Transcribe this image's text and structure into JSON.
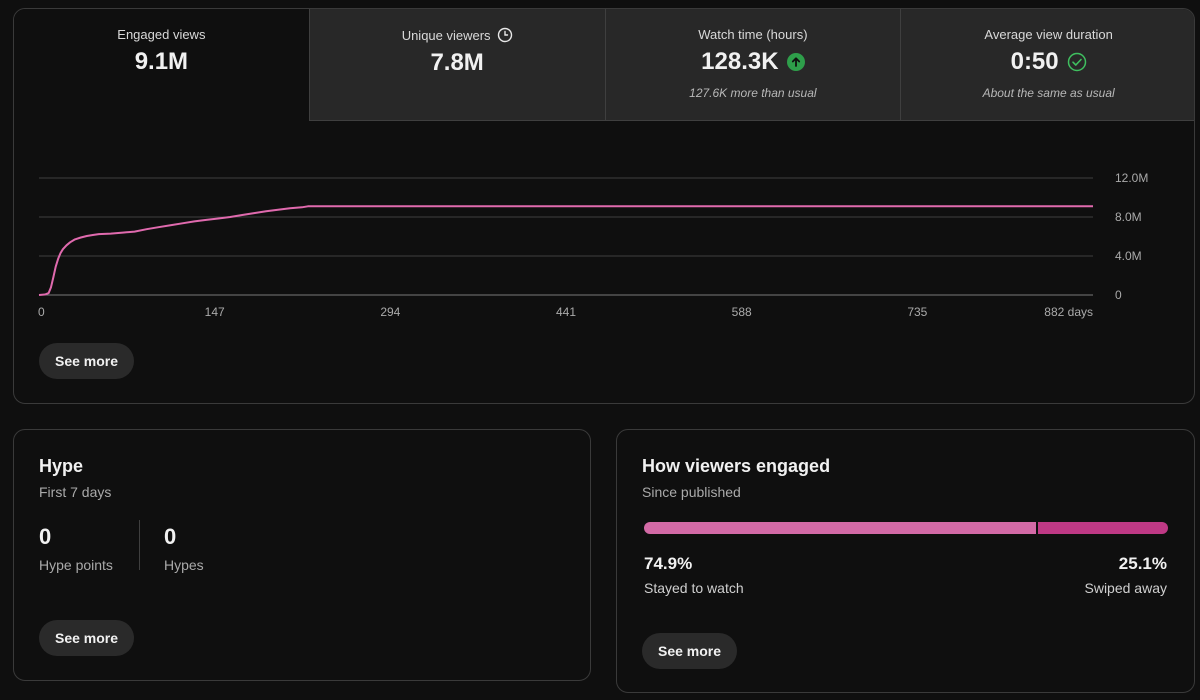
{
  "metrics": [
    {
      "label": "Engaged views",
      "value": "9.1M",
      "note": "",
      "icon": "",
      "selected": true
    },
    {
      "label": "Unique viewers",
      "value": "7.8M",
      "note": "",
      "icon": "clock-icon",
      "selected": false
    },
    {
      "label": "Watch time (hours)",
      "value": "128.3K",
      "note": "127.6K more than usual",
      "icon": "arrow-up-icon",
      "selected": false
    },
    {
      "label": "Average view duration",
      "value": "0:50",
      "note": "About the same as usual",
      "icon": "check-circle-icon",
      "selected": false
    }
  ],
  "colors": {
    "line": "#e06aae",
    "stayed": "#d36aa6",
    "swiped": "#bf3985",
    "up": "#2e9e4a",
    "check": "#3fbf5f"
  },
  "chart_data": {
    "type": "line",
    "xlabel": "",
    "ylabel": "",
    "xlim": [
      0,
      882
    ],
    "ylim": [
      0,
      12000000
    ],
    "x_ticks": [
      "0",
      "147",
      "294",
      "441",
      "588",
      "735",
      "882 days"
    ],
    "y_ticks": [
      "12.0M",
      "8.0M",
      "4.0M",
      "0"
    ],
    "grid": true,
    "series": [
      {
        "name": "",
        "x": [
          0,
          5,
          8,
          10,
          12,
          14,
          16,
          18,
          20,
          23,
          26,
          30,
          35,
          40,
          45,
          50,
          60,
          70,
          80,
          90,
          100,
          110,
          120,
          130,
          140,
          150,
          160,
          170,
          180,
          190,
          200,
          210,
          220,
          225,
          882
        ],
        "y": [
          0,
          50000,
          200000,
          800000,
          1800000,
          2900000,
          3700000,
          4300000,
          4700000,
          5100000,
          5400000,
          5700000,
          5900000,
          6050000,
          6150000,
          6250000,
          6300000,
          6400000,
          6500000,
          6750000,
          6950000,
          7150000,
          7350000,
          7550000,
          7700000,
          7850000,
          8000000,
          8200000,
          8400000,
          8600000,
          8750000,
          8900000,
          9000000,
          9100000,
          9100000
        ]
      }
    ]
  },
  "buttons": {
    "see_more": "See more"
  },
  "hype": {
    "title": "Hype",
    "subtitle": "First 7 days",
    "points_value": "0",
    "points_label": "Hype points",
    "hypes_value": "0",
    "hypes_label": "Hypes"
  },
  "engagement": {
    "title": "How viewers engaged",
    "subtitle": "Since published",
    "stayed_pct": 74.9,
    "stayed_value": "74.9%",
    "stayed_label": "Stayed to watch",
    "swiped_pct": 25.1,
    "swiped_value": "25.1%",
    "swiped_label": "Swiped away"
  }
}
